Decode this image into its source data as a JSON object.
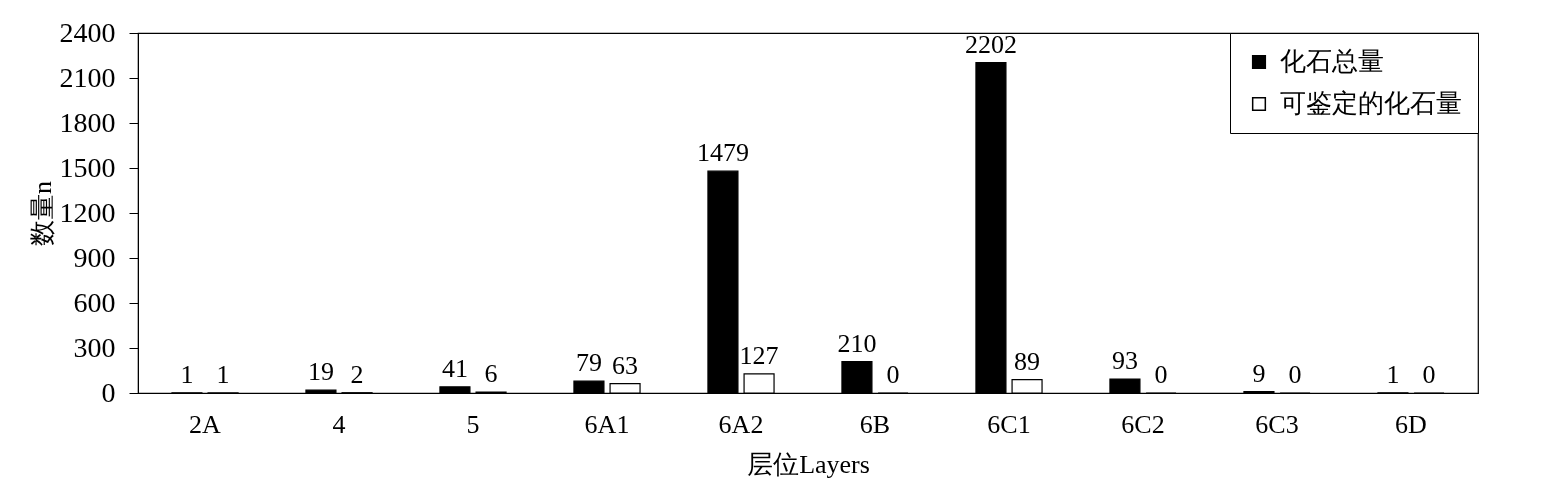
{
  "chart_data": {
    "type": "bar",
    "categories": [
      "2A",
      "4",
      "5",
      "6A1",
      "6A2",
      "6B",
      "6C1",
      "6C2",
      "6C3",
      "6D"
    ],
    "series": [
      {
        "name": "化石总量",
        "color": "#000000",
        "values": [
          1,
          19,
          41,
          79,
          1479,
          210,
          2202,
          93,
          9,
          1
        ]
      },
      {
        "name": "可鉴定的化石量",
        "color": "#ffffff",
        "values": [
          1,
          2,
          6,
          63,
          127,
          0,
          89,
          0,
          0,
          0
        ]
      }
    ],
    "xlabel": "层位Layers",
    "ylabel": "数量n",
    "ylim": [
      0,
      2400
    ],
    "yticks": [
      0,
      300,
      600,
      900,
      1200,
      1500,
      1800,
      2100,
      2400
    ],
    "grid": false,
    "legend": "top right",
    "data_labels": true
  }
}
